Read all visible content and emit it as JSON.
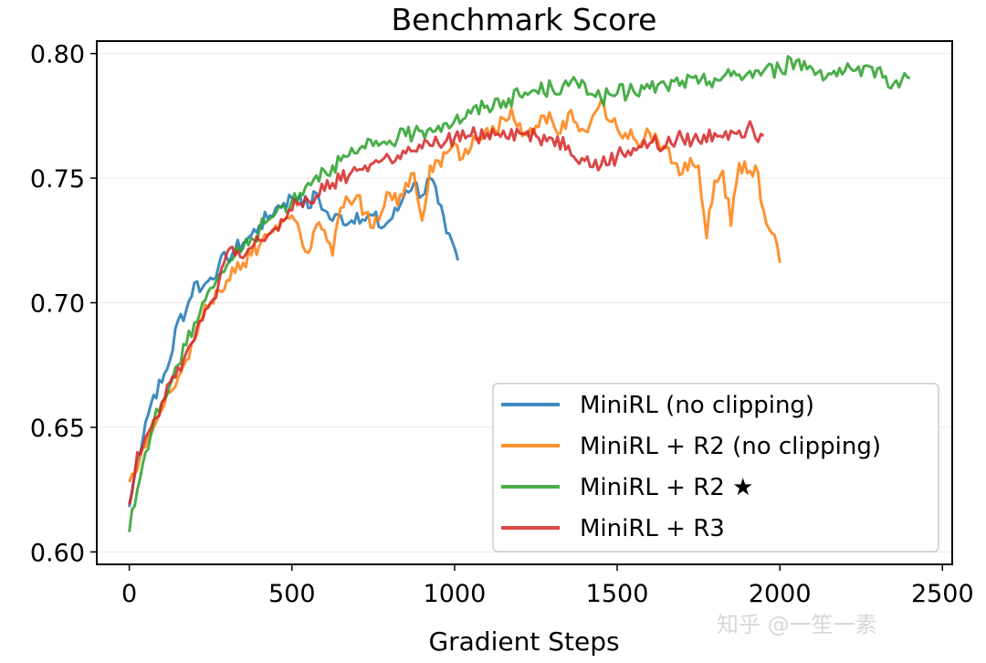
{
  "chart_data": {
    "type": "line",
    "title": "Benchmark Score",
    "xlabel": "Gradient Steps",
    "ylabel": "",
    "xlim": [
      -100,
      2530
    ],
    "ylim": [
      0.595,
      0.805
    ],
    "xticks": [
      0,
      500,
      1000,
      1500,
      2000,
      2500
    ],
    "xtick_labels": [
      "0",
      "500",
      "1000",
      "1500",
      "2000",
      "2500"
    ],
    "yticks": [
      0.6,
      0.65,
      0.7,
      0.75,
      0.8
    ],
    "ytick_labels": [
      "0.60",
      "0.65",
      "0.70",
      "0.75",
      "0.80"
    ],
    "grid": "horizontal",
    "legend_position": "lower-right",
    "series": [
      {
        "name": "MiniRL (no clipping)",
        "color": "#1f77b4",
        "x": [
          0,
          25,
          50,
          75,
          100,
          125,
          150,
          175,
          200,
          225,
          250,
          275,
          300,
          325,
          350,
          375,
          400,
          425,
          450,
          475,
          500,
          525,
          550,
          575,
          600,
          625,
          650,
          675,
          700,
          725,
          750,
          775,
          800,
          825,
          850,
          875,
          900,
          925,
          950,
          975,
          1000,
          1010
        ],
        "values": [
          0.618,
          0.637,
          0.652,
          0.663,
          0.668,
          0.677,
          0.693,
          0.697,
          0.708,
          0.706,
          0.71,
          0.715,
          0.718,
          0.721,
          0.724,
          0.727,
          0.731,
          0.734,
          0.738,
          0.74,
          0.742,
          0.743,
          0.738,
          0.744,
          0.737,
          0.733,
          0.735,
          0.732,
          0.736,
          0.733,
          0.735,
          0.73,
          0.733,
          0.737,
          0.745,
          0.748,
          0.743,
          0.75,
          0.74,
          0.728,
          0.722,
          0.717
        ]
      },
      {
        "name": "MiniRL + R2 (no clipping)",
        "color": "#ff7f0e",
        "x": [
          0,
          25,
          50,
          75,
          100,
          125,
          150,
          175,
          200,
          225,
          250,
          275,
          300,
          325,
          350,
          375,
          400,
          425,
          450,
          475,
          500,
          525,
          550,
          575,
          600,
          625,
          650,
          675,
          700,
          725,
          750,
          775,
          800,
          825,
          850,
          875,
          900,
          925,
          950,
          975,
          1000,
          1025,
          1050,
          1075,
          1100,
          1125,
          1150,
          1175,
          1200,
          1225,
          1250,
          1275,
          1300,
          1325,
          1350,
          1375,
          1400,
          1425,
          1450,
          1475,
          1500,
          1525,
          1550,
          1575,
          1600,
          1625,
          1650,
          1675,
          1700,
          1725,
          1750,
          1775,
          1800,
          1825,
          1850,
          1875,
          1900,
          1925,
          1950,
          1975,
          2000
        ],
        "values": [
          0.628,
          0.633,
          0.642,
          0.65,
          0.657,
          0.664,
          0.67,
          0.677,
          0.685,
          0.694,
          0.7,
          0.705,
          0.709,
          0.712,
          0.716,
          0.719,
          0.723,
          0.727,
          0.731,
          0.733,
          0.735,
          0.728,
          0.72,
          0.731,
          0.729,
          0.719,
          0.738,
          0.741,
          0.743,
          0.736,
          0.73,
          0.736,
          0.744,
          0.739,
          0.748,
          0.752,
          0.733,
          0.755,
          0.757,
          0.76,
          0.764,
          0.758,
          0.762,
          0.766,
          0.77,
          0.769,
          0.774,
          0.778,
          0.772,
          0.767,
          0.771,
          0.775,
          0.773,
          0.768,
          0.776,
          0.772,
          0.769,
          0.775,
          0.781,
          0.773,
          0.77,
          0.768,
          0.766,
          0.764,
          0.768,
          0.765,
          0.762,
          0.756,
          0.752,
          0.758,
          0.755,
          0.726,
          0.749,
          0.753,
          0.731,
          0.756,
          0.752,
          0.755,
          0.737,
          0.728,
          0.716
        ]
      },
      {
        "name": "MiniRL + R2 ★",
        "color": "#2ca02c",
        "x": [
          0,
          25,
          50,
          75,
          100,
          125,
          150,
          175,
          200,
          225,
          250,
          275,
          300,
          325,
          350,
          375,
          400,
          425,
          450,
          475,
          500,
          525,
          550,
          575,
          600,
          625,
          650,
          675,
          700,
          725,
          750,
          775,
          800,
          825,
          850,
          875,
          900,
          925,
          950,
          975,
          1000,
          1050,
          1100,
          1150,
          1200,
          1250,
          1300,
          1350,
          1400,
          1450,
          1500,
          1550,
          1600,
          1650,
          1700,
          1750,
          1800,
          1850,
          1900,
          1950,
          2000,
          2050,
          2100,
          2150,
          2200,
          2250,
          2300,
          2350,
          2400
        ],
        "values": [
          0.608,
          0.625,
          0.64,
          0.652,
          0.66,
          0.667,
          0.675,
          0.683,
          0.692,
          0.7,
          0.706,
          0.711,
          0.715,
          0.719,
          0.722,
          0.726,
          0.729,
          0.733,
          0.736,
          0.739,
          0.741,
          0.744,
          0.748,
          0.751,
          0.753,
          0.755,
          0.757,
          0.759,
          0.76,
          0.762,
          0.763,
          0.764,
          0.765,
          0.766,
          0.767,
          0.768,
          0.769,
          0.77,
          0.771,
          0.772,
          0.773,
          0.776,
          0.779,
          0.781,
          0.783,
          0.785,
          0.786,
          0.787,
          0.788,
          0.782,
          0.784,
          0.785,
          0.786,
          0.787,
          0.789,
          0.788,
          0.79,
          0.791,
          0.792,
          0.793,
          0.794,
          0.797,
          0.794,
          0.792,
          0.793,
          0.791,
          0.794,
          0.788,
          0.79
        ]
      },
      {
        "name": "MiniRL + R3",
        "color": "#d62728",
        "x": [
          0,
          25,
          50,
          75,
          100,
          125,
          150,
          175,
          200,
          225,
          250,
          275,
          300,
          325,
          350,
          375,
          400,
          425,
          450,
          475,
          500,
          525,
          550,
          575,
          600,
          625,
          650,
          675,
          700,
          725,
          750,
          775,
          800,
          825,
          850,
          875,
          900,
          925,
          950,
          975,
          1000,
          1050,
          1100,
          1150,
          1200,
          1250,
          1300,
          1350,
          1400,
          1450,
          1500,
          1550,
          1600,
          1650,
          1700,
          1750,
          1800,
          1850,
          1900,
          1950
        ],
        "values": [
          0.619,
          0.64,
          0.646,
          0.653,
          0.66,
          0.668,
          0.674,
          0.68,
          0.685,
          0.693,
          0.7,
          0.708,
          0.72,
          0.719,
          0.718,
          0.722,
          0.725,
          0.727,
          0.73,
          0.733,
          0.737,
          0.74,
          0.741,
          0.743,
          0.745,
          0.748,
          0.749,
          0.751,
          0.753,
          0.755,
          0.756,
          0.757,
          0.758,
          0.759,
          0.76,
          0.761,
          0.762,
          0.763,
          0.764,
          0.765,
          0.766,
          0.767,
          0.768,
          0.769,
          0.768,
          0.767,
          0.766,
          0.763,
          0.757,
          0.755,
          0.759,
          0.762,
          0.764,
          0.763,
          0.766,
          0.765,
          0.768,
          0.769,
          0.77,
          0.767
        ]
      }
    ]
  },
  "watermark": "知乎 @一笙一素"
}
